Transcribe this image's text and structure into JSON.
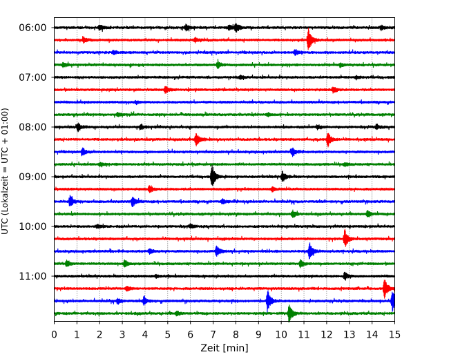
{
  "chart_data": {
    "type": "line",
    "title": "",
    "xlabel": "Zeit  [min]",
    "ylabel": "UTC (Lokalzeit = UTC + 01:00)",
    "xlim": [
      0,
      15
    ],
    "x_ticks": [
      0,
      1,
      2,
      3,
      4,
      5,
      6,
      7,
      8,
      9,
      10,
      11,
      12,
      13,
      14,
      15
    ],
    "vertical_grid": true,
    "grid_style": "dotted",
    "y_tick_labels": [
      "06:00",
      "07:00",
      "08:00",
      "09:00",
      "10:00",
      "11:00"
    ],
    "trace_interval_minutes": 15,
    "trace_start": "06:00",
    "trace_count": 24,
    "color_cycle": [
      "#000000",
      "#ff0000",
      "#0000ff",
      "#008000"
    ],
    "traces": [
      {
        "start": "06:00",
        "color": "#000000",
        "events": [
          {
            "t": 2.0,
            "a": 0.22
          },
          {
            "t": 5.8,
            "a": 0.28
          },
          {
            "t": 7.7,
            "a": 0.2
          },
          {
            "t": 8.0,
            "a": 0.42
          },
          {
            "t": 14.4,
            "a": 0.18
          }
        ]
      },
      {
        "start": "06:15",
        "color": "#ff0000",
        "events": [
          {
            "t": 1.3,
            "a": 0.2
          },
          {
            "t": 6.2,
            "a": 0.2
          },
          {
            "t": 11.2,
            "a": 0.95
          }
        ]
      },
      {
        "start": "06:30",
        "color": "#0000ff",
        "events": [
          {
            "t": 2.6,
            "a": 0.15
          },
          {
            "t": 10.6,
            "a": 0.22
          }
        ]
      },
      {
        "start": "06:45",
        "color": "#008000",
        "events": [
          {
            "t": 0.4,
            "a": 0.18
          },
          {
            "t": 7.2,
            "a": 0.28
          },
          {
            "t": 12.6,
            "a": 0.15
          }
        ]
      },
      {
        "start": "07:00",
        "color": "#000000",
        "events": [
          {
            "t": 8.2,
            "a": 0.18
          },
          {
            "t": 13.3,
            "a": 0.15
          }
        ]
      },
      {
        "start": "07:15",
        "color": "#ff0000",
        "events": [
          {
            "t": 4.9,
            "a": 0.3
          },
          {
            "t": 12.3,
            "a": 0.25
          }
        ]
      },
      {
        "start": "07:30",
        "color": "#0000ff",
        "events": [
          {
            "t": 3.6,
            "a": 0.12
          }
        ]
      },
      {
        "start": "07:45",
        "color": "#008000",
        "events": [
          {
            "t": 2.8,
            "a": 0.15
          },
          {
            "t": 9.4,
            "a": 0.15
          }
        ]
      },
      {
        "start": "08:00",
        "color": "#000000",
        "events": [
          {
            "t": 1.05,
            "a": 0.32
          },
          {
            "t": 3.8,
            "a": 0.25
          },
          {
            "t": 11.6,
            "a": 0.2
          },
          {
            "t": 14.2,
            "a": 0.2
          }
        ]
      },
      {
        "start": "08:15",
        "color": "#ff0000",
        "events": [
          {
            "t": 6.25,
            "a": 0.55
          },
          {
            "t": 12.05,
            "a": 0.6
          }
        ]
      },
      {
        "start": "08:30",
        "color": "#0000ff",
        "events": [
          {
            "t": 1.25,
            "a": 0.32
          },
          {
            "t": 10.5,
            "a": 0.35
          }
        ]
      },
      {
        "start": "08:45",
        "color": "#008000",
        "events": [
          {
            "t": 2.0,
            "a": 0.15
          },
          {
            "t": 12.8,
            "a": 0.15
          }
        ]
      },
      {
        "start": "09:00",
        "color": "#000000",
        "events": [
          {
            "t": 6.95,
            "a": 1.0
          },
          {
            "t": 10.05,
            "a": 0.45
          }
        ]
      },
      {
        "start": "09:15",
        "color": "#ff0000",
        "events": [
          {
            "t": 4.2,
            "a": 0.28
          },
          {
            "t": 9.6,
            "a": 0.18
          }
        ]
      },
      {
        "start": "09:30",
        "color": "#0000ff",
        "events": [
          {
            "t": 0.7,
            "a": 0.48
          },
          {
            "t": 3.45,
            "a": 0.42
          },
          {
            "t": 7.4,
            "a": 0.2
          }
        ]
      },
      {
        "start": "09:45",
        "color": "#008000",
        "events": [
          {
            "t": 10.5,
            "a": 0.35
          },
          {
            "t": 13.8,
            "a": 0.3
          }
        ]
      },
      {
        "start": "10:00",
        "color": "#000000",
        "events": [
          {
            "t": 1.9,
            "a": 0.15
          },
          {
            "t": 6.0,
            "a": 0.15
          }
        ]
      },
      {
        "start": "10:15",
        "color": "#ff0000",
        "events": [
          {
            "t": 12.8,
            "a": 0.75
          }
        ]
      },
      {
        "start": "10:30",
        "color": "#0000ff",
        "events": [
          {
            "t": 4.2,
            "a": 0.22
          },
          {
            "t": 7.15,
            "a": 0.5
          },
          {
            "t": 11.25,
            "a": 0.7
          }
        ]
      },
      {
        "start": "10:45",
        "color": "#008000",
        "events": [
          {
            "t": 0.55,
            "a": 0.3
          },
          {
            "t": 3.1,
            "a": 0.28
          },
          {
            "t": 10.85,
            "a": 0.3
          }
        ]
      },
      {
        "start": "11:00",
        "color": "#000000",
        "events": [
          {
            "t": 4.5,
            "a": 0.12
          },
          {
            "t": 12.8,
            "a": 0.32
          }
        ]
      },
      {
        "start": "11:15",
        "color": "#ff0000",
        "events": [
          {
            "t": 3.2,
            "a": 0.22
          },
          {
            "t": 14.55,
            "a": 0.8
          }
        ]
      },
      {
        "start": "11:30",
        "color": "#0000ff",
        "events": [
          {
            "t": 2.8,
            "a": 0.22
          },
          {
            "t": 3.95,
            "a": 0.32
          },
          {
            "t": 9.4,
            "a": 0.9
          },
          {
            "t": 14.9,
            "a": 0.9
          }
        ]
      },
      {
        "start": "11:45",
        "color": "#008000",
        "events": [
          {
            "t": 5.4,
            "a": 0.2
          },
          {
            "t": 10.35,
            "a": 0.8
          }
        ]
      }
    ]
  }
}
